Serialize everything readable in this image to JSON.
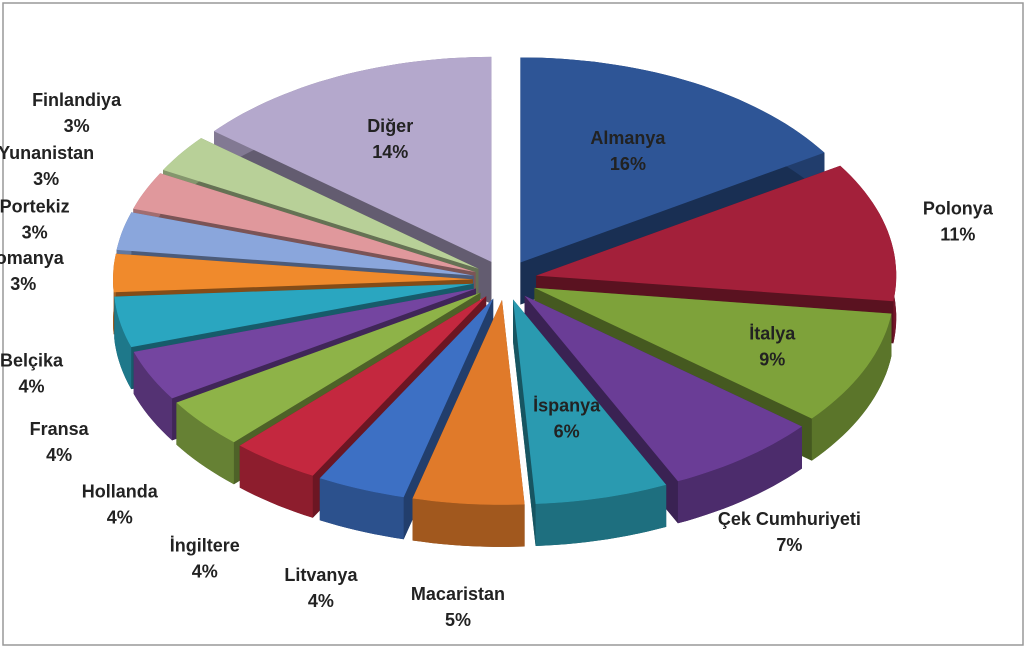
{
  "chart_data": {
    "type": "pie3d",
    "categories": [
      "Almanya",
      "Polonya",
      "İtalya",
      "Çek Cumhuriyeti",
      "İspanya",
      "Macaristan",
      "Litvanya",
      "İngiltere",
      "Hollanda",
      "Fransa",
      "Belçika",
      "Romanya",
      "Portekiz",
      "Yunanistan",
      "Finlandiya",
      "Diğer"
    ],
    "values": [
      16,
      11,
      9,
      7,
      6,
      5,
      4,
      4,
      4,
      4,
      4,
      3,
      3,
      3,
      3,
      14
    ],
    "value_labels": [
      "16%",
      "11%",
      "9%",
      "7%",
      "6%",
      "5%",
      "4%",
      "4%",
      "4%",
      "4%",
      "4%",
      "3%",
      "3%",
      "3%",
      "3%",
      "14%"
    ],
    "colors": [
      "#2e5596",
      "#a3203a",
      "#7ea23a",
      "#6a3d96",
      "#2a9ab0",
      "#e07a2a",
      "#3d70c4",
      "#c4283f",
      "#8eb348",
      "#7445a0",
      "#2aa6c0",
      "#f08a2c",
      "#8aa6dc",
      "#e0989c",
      "#b8d098",
      "#b4a8cc"
    ]
  }
}
